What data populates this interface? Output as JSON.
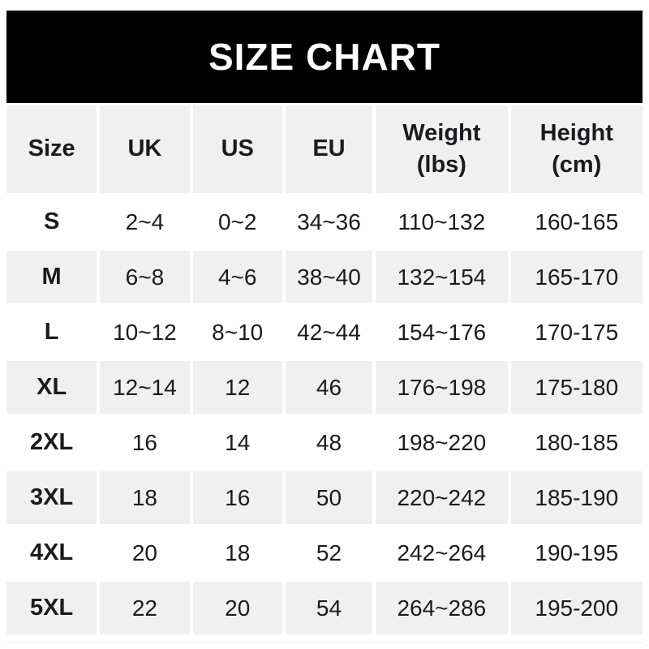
{
  "chart_data": {
    "type": "table",
    "title": "SIZE CHART",
    "columns": [
      "Size",
      "UK",
      "US",
      "EU",
      "Weight\n(lbs)",
      "Height\n(cm)"
    ],
    "rows": [
      [
        "S",
        "2~4",
        "0~2",
        "34~36",
        "110~132",
        "160-165"
      ],
      [
        "M",
        "6~8",
        "4~6",
        "38~40",
        "132~154",
        "165-170"
      ],
      [
        "L",
        "10~12",
        "8~10",
        "42~44",
        "154~176",
        "170-175"
      ],
      [
        "XL",
        "12~14",
        "12",
        "46",
        "176~198",
        "175-180"
      ],
      [
        "2XL",
        "16",
        "14",
        "48",
        "198~220",
        "180-185"
      ],
      [
        "3XL",
        "18",
        "16",
        "50",
        "220~242",
        "185-190"
      ],
      [
        "4XL",
        "20",
        "18",
        "52",
        "242~264",
        "190-195"
      ],
      [
        "5XL",
        "22",
        "20",
        "54",
        "264~286",
        "195-200"
      ]
    ],
    "layout": {
      "header_background": "gray",
      "row_striping": "white-then-gray",
      "grid": "white-gutters"
    }
  },
  "colors": {
    "banner_bg": "#000000",
    "banner_text": "#ffffff",
    "row_bg": "#ffffff",
    "row_alt_bg": "#f1f0f1",
    "text": "#1b1b1d"
  }
}
